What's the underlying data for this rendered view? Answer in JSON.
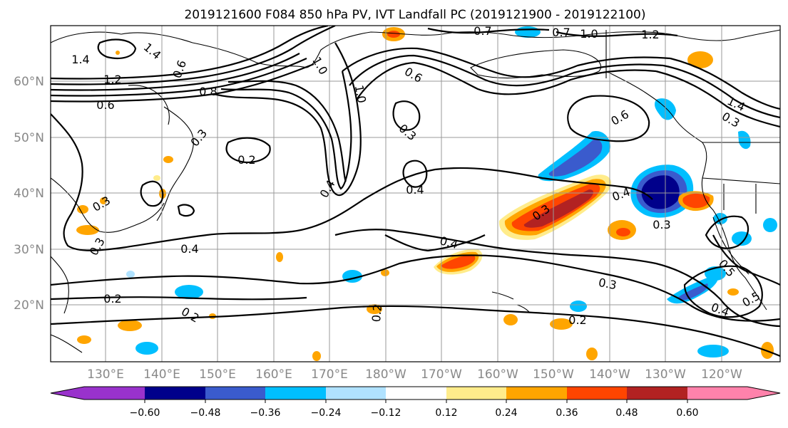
{
  "title": "2019121600 F084 850 hPa PV, IVT Landfall PC (2019121900 - 2019122100)",
  "lat_labels": [
    "60°N",
    "50°N",
    "40°N",
    "30°N",
    "20°N"
  ],
  "lon_labels": [
    "130°E",
    "140°E",
    "150°E",
    "160°E",
    "170°E",
    "180°W",
    "170°W",
    "160°W",
    "150°W",
    "140°W",
    "130°W",
    "120°W"
  ],
  "colorbar": {
    "ticks": [
      "−0.60",
      "−0.48",
      "−0.36",
      "−0.24",
      "−0.12",
      "0.12",
      "0.24",
      "0.36",
      "0.48",
      "0.60"
    ],
    "colors": [
      "#9932cc",
      "#00008b",
      "#3a5bcd",
      "#00bfff",
      "#b0e2ff",
      "#ffffff",
      "#ffec8b",
      "#ffa500",
      "#ff4500",
      "#b22222",
      "#ff82ab"
    ]
  },
  "contour_labels": [
    "1.4",
    "1.4",
    "1.2",
    "0.6",
    "0.8",
    "0.3",
    "0.2",
    "0.3",
    "0.6",
    "1.0",
    "1.0",
    "0.6",
    "0.3",
    "0.4",
    "0.4",
    "0.4",
    "0.4",
    "0.3",
    "0.3",
    "0.4",
    "0.6",
    "0.3",
    "1.4",
    "0.7",
    "0.7",
    "1.0",
    "1.2",
    "0.3",
    "0.2",
    "0.2",
    "0.3",
    "0.5",
    "0.5",
    "0.4",
    "0.2",
    "0.2"
  ]
}
